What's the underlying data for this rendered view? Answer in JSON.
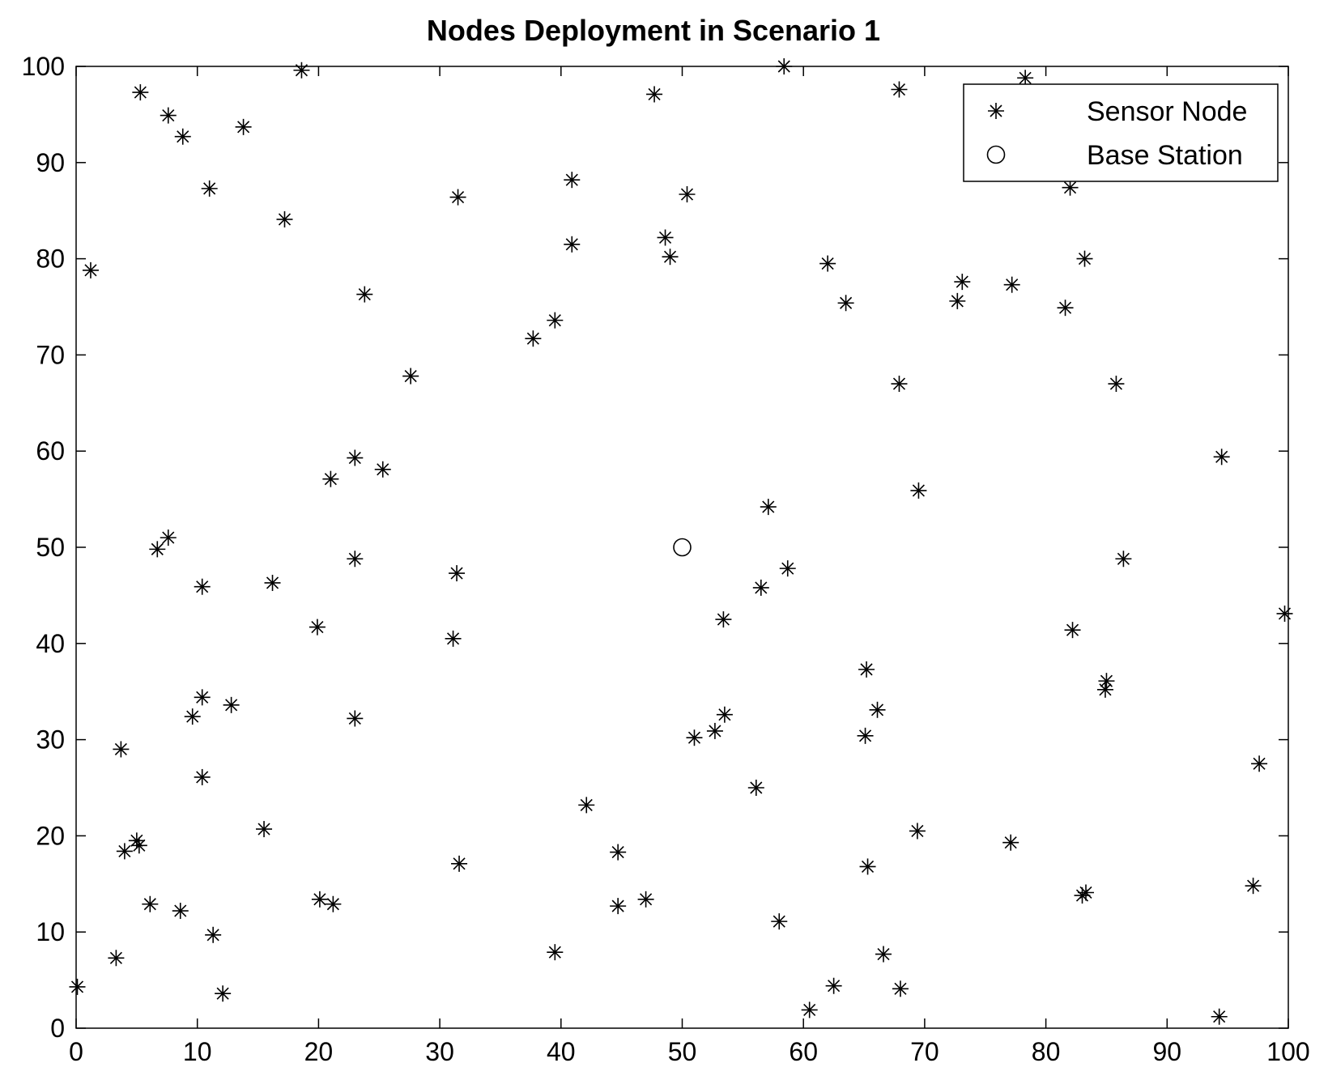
{
  "chart_data": {
    "type": "scatter",
    "title": "Nodes Deployment in Scenario 1",
    "xlabel": "",
    "ylabel": "",
    "xlim": [
      0,
      100
    ],
    "ylim": [
      0,
      100
    ],
    "xticks": [
      "0",
      "10",
      "20",
      "30",
      "40",
      "50",
      "60",
      "70",
      "80",
      "90",
      "100"
    ],
    "yticks": [
      "0",
      "10",
      "20",
      "30",
      "40",
      "50",
      "60",
      "70",
      "80",
      "90",
      "100"
    ],
    "grid": false,
    "legend_position": "top-right",
    "series": [
      {
        "name": "Sensor Node",
        "marker": "asterisk",
        "color": "#000000",
        "points": [
          [
            5.3,
            97.3
          ],
          [
            7.6,
            94.9
          ],
          [
            8.8,
            92.7
          ],
          [
            13.8,
            93.7
          ],
          [
            18.6,
            99.6
          ],
          [
            11.0,
            87.3
          ],
          [
            1.2,
            78.8
          ],
          [
            17.2,
            84.1
          ],
          [
            23.8,
            76.3
          ],
          [
            27.6,
            67.8
          ],
          [
            31.5,
            86.4
          ],
          [
            37.7,
            71.7
          ],
          [
            39.5,
            73.6
          ],
          [
            40.9,
            81.5
          ],
          [
            40.9,
            88.2
          ],
          [
            47.7,
            97.1
          ],
          [
            48.6,
            82.2
          ],
          [
            49.0,
            80.2
          ],
          [
            50.4,
            86.7
          ],
          [
            58.4,
            100.0
          ],
          [
            62.0,
            79.5
          ],
          [
            63.5,
            75.4
          ],
          [
            67.9,
            97.6
          ],
          [
            67.9,
            67.0
          ],
          [
            72.7,
            75.6
          ],
          [
            73.1,
            77.6
          ],
          [
            77.2,
            77.3
          ],
          [
            78.3,
            98.8
          ],
          [
            81.6,
            74.9
          ],
          [
            82.0,
            87.4
          ],
          [
            83.2,
            80.0
          ],
          [
            85.8,
            67.0
          ],
          [
            94.5,
            59.4
          ],
          [
            99.7,
            43.1
          ],
          [
            86.4,
            48.8
          ],
          [
            82.2,
            41.4
          ],
          [
            84.9,
            35.2
          ],
          [
            85.0,
            36.1
          ],
          [
            97.6,
            27.5
          ],
          [
            97.1,
            14.8
          ],
          [
            94.3,
            1.2
          ],
          [
            83.0,
            13.8
          ],
          [
            83.3,
            14.1
          ],
          [
            77.1,
            19.3
          ],
          [
            69.4,
            20.5
          ],
          [
            65.3,
            16.8
          ],
          [
            66.6,
            7.7
          ],
          [
            68.0,
            4.1
          ],
          [
            62.5,
            4.4
          ],
          [
            60.5,
            1.9
          ],
          [
            58.0,
            11.1
          ],
          [
            56.1,
            25.0
          ],
          [
            53.5,
            32.6
          ],
          [
            52.7,
            30.9
          ],
          [
            51.0,
            30.2
          ],
          [
            53.4,
            42.5
          ],
          [
            56.5,
            45.8
          ],
          [
            57.1,
            54.2
          ],
          [
            58.7,
            47.8
          ],
          [
            65.2,
            37.3
          ],
          [
            65.1,
            30.4
          ],
          [
            66.1,
            33.1
          ],
          [
            69.5,
            55.9
          ],
          [
            47.0,
            13.4
          ],
          [
            44.7,
            18.3
          ],
          [
            44.7,
            12.7
          ],
          [
            42.1,
            23.2
          ],
          [
            39.5,
            7.9
          ],
          [
            31.6,
            17.1
          ],
          [
            31.1,
            40.5
          ],
          [
            31.4,
            47.3
          ],
          [
            23.0,
            59.3
          ],
          [
            25.3,
            58.1
          ],
          [
            21.0,
            57.1
          ],
          [
            23.0,
            48.8
          ],
          [
            23.0,
            32.2
          ],
          [
            19.9,
            41.7
          ],
          [
            16.2,
            46.3
          ],
          [
            12.8,
            33.6
          ],
          [
            10.4,
            34.4
          ],
          [
            9.6,
            32.4
          ],
          [
            10.4,
            45.9
          ],
          [
            10.4,
            26.1
          ],
          [
            7.6,
            51.0
          ],
          [
            6.7,
            49.8
          ],
          [
            3.7,
            29.0
          ],
          [
            4.0,
            18.4
          ],
          [
            5.0,
            19.5
          ],
          [
            5.2,
            19.0
          ],
          [
            6.1,
            12.9
          ],
          [
            8.6,
            12.2
          ],
          [
            11.3,
            9.7
          ],
          [
            12.1,
            3.6
          ],
          [
            3.3,
            7.3
          ],
          [
            0.1,
            4.3
          ],
          [
            15.5,
            20.7
          ],
          [
            20.1,
            13.4
          ],
          [
            21.2,
            12.9
          ]
        ]
      },
      {
        "name": "Base Station",
        "marker": "circle",
        "color": "#000000",
        "points": [
          [
            50,
            50
          ]
        ]
      }
    ]
  }
}
